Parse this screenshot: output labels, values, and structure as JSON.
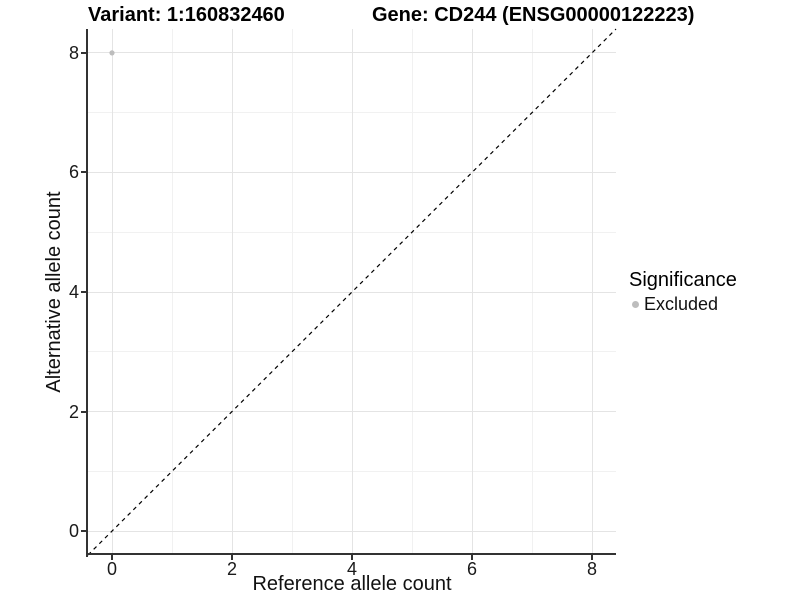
{
  "header": {
    "variant_title": "Variant: 1:160832460",
    "gene_title": "Gene: CD244 (ENSG00000122223)"
  },
  "chart_data": {
    "type": "scatter",
    "xlabel": "Reference allele count",
    "ylabel": "Alternative allele count",
    "x_ticks": [
      0,
      2,
      4,
      6,
      8
    ],
    "y_ticks": [
      0,
      2,
      4,
      6,
      8
    ],
    "xlim": [
      -0.4,
      8.4
    ],
    "ylim": [
      -0.4,
      8.4
    ],
    "grid": "major+minor",
    "series": [
      {
        "name": "Excluded",
        "color": "#bdbdbd",
        "point_radius": 2.6,
        "points": [
          [
            0,
            8
          ]
        ]
      }
    ],
    "reference_line": {
      "kind": "identity y=x",
      "style": "dashed",
      "color": "#000000"
    },
    "legend": {
      "title": "Significance",
      "position": "right",
      "entries": [
        {
          "label": "Excluded",
          "color": "#bdbdbd"
        }
      ]
    },
    "colors": {
      "major_grid": "#e4e4e4",
      "minor_grid": "#f1f1f1",
      "axis_line": "#333333",
      "background": "#ffffff"
    }
  }
}
